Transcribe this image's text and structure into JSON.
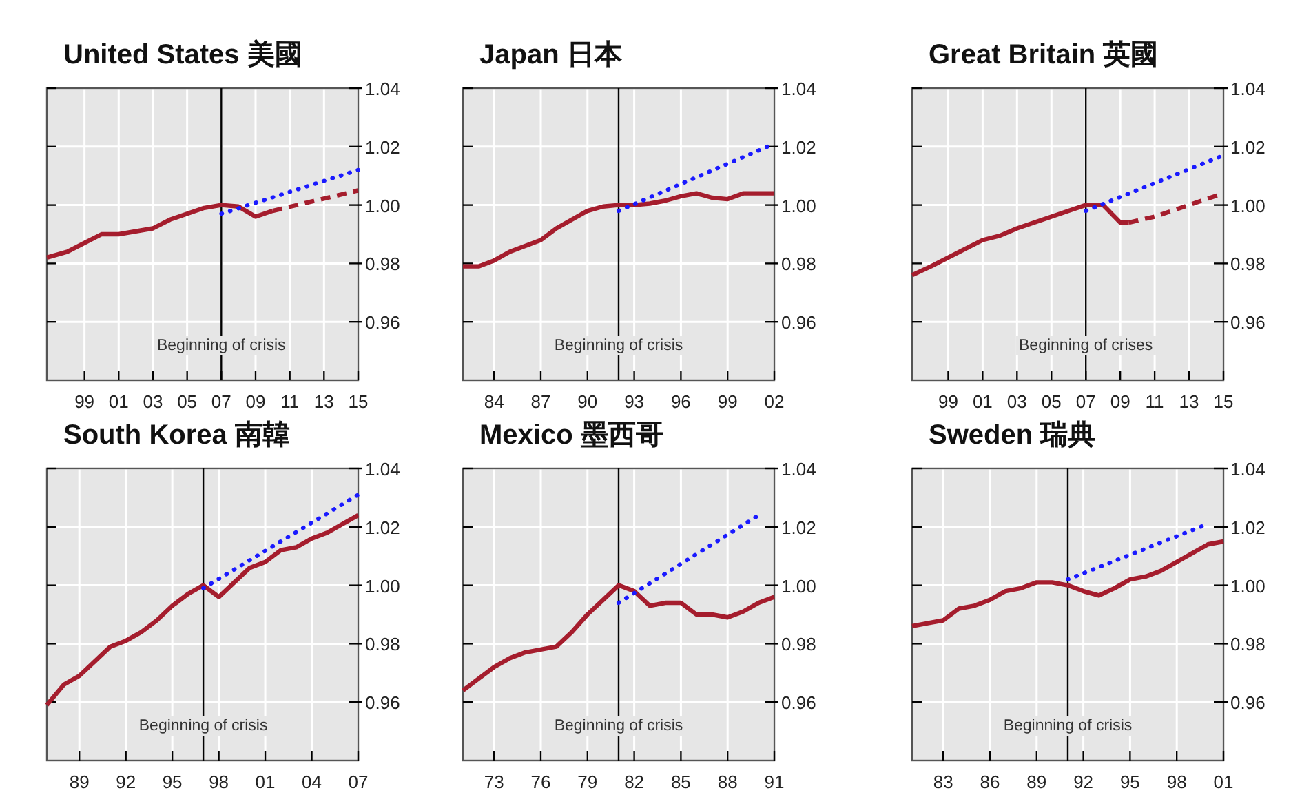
{
  "chart_data": [
    {
      "type": "line",
      "title": "United States 美國",
      "xlim": [
        1996.8,
        2015
      ],
      "ylim": [
        0.94,
        1.04
      ],
      "grid": true,
      "xticks": [
        {
          "value": 1999,
          "label": "99"
        },
        {
          "value": 2001,
          "label": "01"
        },
        {
          "value": 2003,
          "label": "03"
        },
        {
          "value": 2005,
          "label": "05"
        },
        {
          "value": 2007,
          "label": "07"
        },
        {
          "value": 2009,
          "label": "09"
        },
        {
          "value": 2011,
          "label": "11"
        },
        {
          "value": 2013,
          "label": "13"
        },
        {
          "value": 2015,
          "label": "15"
        }
      ],
      "yticks": [
        {
          "value": 0.96,
          "label": "0.96"
        },
        {
          "value": 0.98,
          "label": "0.98"
        },
        {
          "value": 1.0,
          "label": "1.00"
        },
        {
          "value": 1.02,
          "label": "1.02"
        },
        {
          "value": 1.04,
          "label": "1.04"
        }
      ],
      "ref_lines": [
        {
          "axis": "x",
          "value": 2007,
          "label": "Beginning of crisis",
          "color": "#000000"
        }
      ],
      "series": [
        {
          "color": "#a51d2d",
          "line_style": "solid",
          "x": [
            1996.8,
            1998,
            1999,
            2000,
            2001,
            2002,
            2003,
            2004,
            2005,
            2006,
            2007,
            2008,
            2009,
            2010
          ],
          "values": [
            0.982,
            0.984,
            0.987,
            0.99,
            0.99,
            0.991,
            0.992,
            0.995,
            0.997,
            0.999,
            1.0,
            0.9995,
            0.996,
            0.998
          ]
        },
        {
          "color": "#a51d2d",
          "line_style": "dashed",
          "x": [
            2010,
            2015
          ],
          "values": [
            0.998,
            1.005
          ]
        },
        {
          "color": "#1a1aff",
          "line_style": "dotted",
          "x": [
            2007,
            2015
          ],
          "values": [
            0.997,
            1.012
          ]
        }
      ]
    },
    {
      "type": "line",
      "title": "Japan 日本",
      "xlim": [
        1982,
        2002
      ],
      "ylim": [
        0.94,
        1.04
      ],
      "grid": true,
      "xticks": [
        {
          "value": 1984,
          "label": "84"
        },
        {
          "value": 1987,
          "label": "87"
        },
        {
          "value": 1990,
          "label": "90"
        },
        {
          "value": 1993,
          "label": "93"
        },
        {
          "value": 1996,
          "label": "96"
        },
        {
          "value": 1999,
          "label": "99"
        },
        {
          "value": 2002,
          "label": "02"
        }
      ],
      "yticks": [
        {
          "value": 0.96,
          "label": "0.96"
        },
        {
          "value": 0.98,
          "label": "0.98"
        },
        {
          "value": 1.0,
          "label": "1.00"
        },
        {
          "value": 1.02,
          "label": "1.02"
        },
        {
          "value": 1.04,
          "label": "1.04"
        }
      ],
      "ref_lines": [
        {
          "axis": "x",
          "value": 1992,
          "label": "Beginning of crisis",
          "color": "#000000"
        }
      ],
      "series": [
        {
          "color": "#a51d2d",
          "line_style": "solid",
          "x": [
            1982,
            1983,
            1984,
            1985,
            1986,
            1987,
            1988,
            1989,
            1990,
            1991,
            1992,
            1993,
            1994,
            1995,
            1996,
            1997,
            1998,
            1999,
            2000,
            2001,
            2002
          ],
          "values": [
            0.979,
            0.979,
            0.981,
            0.984,
            0.986,
            0.988,
            0.992,
            0.995,
            0.998,
            0.9995,
            1.0,
            1.0,
            1.0005,
            1.0015,
            1.003,
            1.004,
            1.0025,
            1.002,
            1.004,
            1.004,
            1.004
          ]
        },
        {
          "color": "#1a1aff",
          "line_style": "dotted",
          "x": [
            1992,
            2002
          ],
          "values": [
            0.998,
            1.021
          ]
        }
      ]
    },
    {
      "type": "line",
      "title": "Great Britain 英國",
      "xlim": [
        1996.9,
        2015
      ],
      "ylim": [
        0.94,
        1.04
      ],
      "grid": true,
      "xticks": [
        {
          "value": 1999,
          "label": "99"
        },
        {
          "value": 2001,
          "label": "01"
        },
        {
          "value": 2003,
          "label": "03"
        },
        {
          "value": 2005,
          "label": "05"
        },
        {
          "value": 2007,
          "label": "07"
        },
        {
          "value": 2009,
          "label": "09"
        },
        {
          "value": 2011,
          "label": "11"
        },
        {
          "value": 2013,
          "label": "13"
        },
        {
          "value": 2015,
          "label": "15"
        }
      ],
      "yticks": [
        {
          "value": 0.96,
          "label": "0.96"
        },
        {
          "value": 0.98,
          "label": "0.98"
        },
        {
          "value": 1.0,
          "label": "1.00"
        },
        {
          "value": 1.02,
          "label": "1.02"
        },
        {
          "value": 1.04,
          "label": "1.04"
        }
      ],
      "ref_lines": [
        {
          "axis": "x",
          "value": 2007,
          "label": "Beginning of crises",
          "color": "#000000"
        }
      ],
      "series": [
        {
          "color": "#a51d2d",
          "line_style": "solid",
          "x": [
            1996.9,
            1998,
            1999,
            2000,
            2001,
            2002,
            2003,
            2004,
            2005,
            2006,
            2007,
            2008,
            2009,
            2009.5
          ],
          "values": [
            0.976,
            0.979,
            0.982,
            0.985,
            0.988,
            0.9895,
            0.992,
            0.994,
            0.996,
            0.998,
            1.0,
            1.0,
            0.994,
            0.994
          ]
        },
        {
          "color": "#a51d2d",
          "line_style": "dashed",
          "x": [
            2009.5,
            2011,
            2015
          ],
          "values": [
            0.994,
            0.996,
            1.004
          ]
        },
        {
          "color": "#1a1aff",
          "line_style": "dotted",
          "x": [
            2007,
            2015
          ],
          "values": [
            0.998,
            1.017
          ]
        }
      ]
    },
    {
      "type": "line",
      "title": "South Korea 南韓",
      "xlim": [
        1986.9,
        2007
      ],
      "ylim": [
        0.94,
        1.04
      ],
      "grid": true,
      "xticks": [
        {
          "value": 1989,
          "label": "89"
        },
        {
          "value": 1992,
          "label": "92"
        },
        {
          "value": 1995,
          "label": "95"
        },
        {
          "value": 1998,
          "label": "98"
        },
        {
          "value": 2001,
          "label": "01"
        },
        {
          "value": 2004,
          "label": "04"
        },
        {
          "value": 2007,
          "label": "07"
        }
      ],
      "yticks": [
        {
          "value": 0.96,
          "label": "0.96"
        },
        {
          "value": 0.98,
          "label": "0.98"
        },
        {
          "value": 1.0,
          "label": "1.00"
        },
        {
          "value": 1.02,
          "label": "1.02"
        },
        {
          "value": 1.04,
          "label": "1.04"
        }
      ],
      "ref_lines": [
        {
          "axis": "x",
          "value": 1997,
          "label": "Beginning of crisis",
          "color": "#000000"
        }
      ],
      "series": [
        {
          "color": "#a51d2d",
          "line_style": "solid",
          "x": [
            1986.9,
            1988,
            1989,
            1990,
            1991,
            1992,
            1993,
            1994,
            1995,
            1996,
            1997,
            1998,
            1999,
            2000,
            2001,
            2002,
            2003,
            2004,
            2005,
            2006,
            2007
          ],
          "values": [
            0.959,
            0.966,
            0.969,
            0.974,
            0.979,
            0.981,
            0.984,
            0.988,
            0.993,
            0.997,
            1.0,
            0.996,
            1.001,
            1.006,
            1.008,
            1.012,
            1.013,
            1.016,
            1.018,
            1.021,
            1.024
          ]
        },
        {
          "color": "#1a1aff",
          "line_style": "dotted",
          "x": [
            1997,
            2007
          ],
          "values": [
            0.999,
            1.031
          ]
        }
      ]
    },
    {
      "type": "line",
      "title": "Mexico 墨西哥",
      "xlim": [
        1971,
        1991
      ],
      "ylim": [
        0.94,
        1.04
      ],
      "grid": true,
      "xticks": [
        {
          "value": 1973,
          "label": "73"
        },
        {
          "value": 1976,
          "label": "76"
        },
        {
          "value": 1979,
          "label": "79"
        },
        {
          "value": 1982,
          "label": "82"
        },
        {
          "value": 1985,
          "label": "85"
        },
        {
          "value": 1988,
          "label": "88"
        },
        {
          "value": 1991,
          "label": "91"
        }
      ],
      "yticks": [
        {
          "value": 0.96,
          "label": "0.96"
        },
        {
          "value": 0.98,
          "label": "0.98"
        },
        {
          "value": 1.0,
          "label": "1.00"
        },
        {
          "value": 1.02,
          "label": "1.02"
        },
        {
          "value": 1.04,
          "label": "1.04"
        }
      ],
      "ref_lines": [
        {
          "axis": "x",
          "value": 1981,
          "label": "Beginning of crisis",
          "color": "#000000"
        }
      ],
      "series": [
        {
          "color": "#a51d2d",
          "line_style": "solid",
          "x": [
            1971,
            1972,
            1973,
            1974,
            1975,
            1976,
            1977,
            1978,
            1979,
            1980,
            1981,
            1982,
            1983,
            1984,
            1985,
            1986,
            1987,
            1988,
            1989,
            1990,
            1991
          ],
          "values": [
            0.964,
            0.968,
            0.972,
            0.975,
            0.977,
            0.978,
            0.979,
            0.984,
            0.99,
            0.995,
            1.0,
            0.998,
            0.993,
            0.994,
            0.994,
            0.99,
            0.99,
            0.989,
            0.991,
            0.994,
            0.996
          ]
        },
        {
          "color": "#1a1aff",
          "line_style": "dotted",
          "x": [
            1981,
            1990
          ],
          "values": [
            0.994,
            1.024
          ]
        }
      ]
    },
    {
      "type": "line",
      "title": "Sweden 瑞典",
      "xlim": [
        1981,
        2001
      ],
      "ylim": [
        0.94,
        1.04
      ],
      "grid": true,
      "xticks": [
        {
          "value": 1983,
          "label": "83"
        },
        {
          "value": 1986,
          "label": "86"
        },
        {
          "value": 1989,
          "label": "89"
        },
        {
          "value": 1992,
          "label": "92"
        },
        {
          "value": 1995,
          "label": "95"
        },
        {
          "value": 1998,
          "label": "98"
        },
        {
          "value": 2001,
          "label": "01"
        }
      ],
      "yticks": [
        {
          "value": 0.96,
          "label": "0.96"
        },
        {
          "value": 0.98,
          "label": "0.98"
        },
        {
          "value": 1.0,
          "label": "1.00"
        },
        {
          "value": 1.02,
          "label": "1.02"
        },
        {
          "value": 1.04,
          "label": "1.04"
        }
      ],
      "ref_lines": [
        {
          "axis": "x",
          "value": 1991,
          "label": "Beginning of crisis",
          "color": "#000000"
        }
      ],
      "series": [
        {
          "color": "#a51d2d",
          "line_style": "solid",
          "x": [
            1981,
            1982,
            1983,
            1984,
            1985,
            1986,
            1987,
            1988,
            1989,
            1990,
            1991,
            1992,
            1993,
            1994,
            1995,
            1996,
            1997,
            1998,
            1999,
            2000,
            2001
          ],
          "values": [
            0.986,
            0.987,
            0.988,
            0.992,
            0.993,
            0.995,
            0.998,
            0.999,
            1.001,
            1.001,
            1.0,
            0.998,
            0.9965,
            0.999,
            1.002,
            1.003,
            1.005,
            1.008,
            1.011,
            1.014,
            1.015
          ]
        },
        {
          "color": "#1a1aff",
          "line_style": "dotted",
          "x": [
            1991,
            2000
          ],
          "values": [
            1.002,
            1.021
          ]
        }
      ]
    }
  ]
}
